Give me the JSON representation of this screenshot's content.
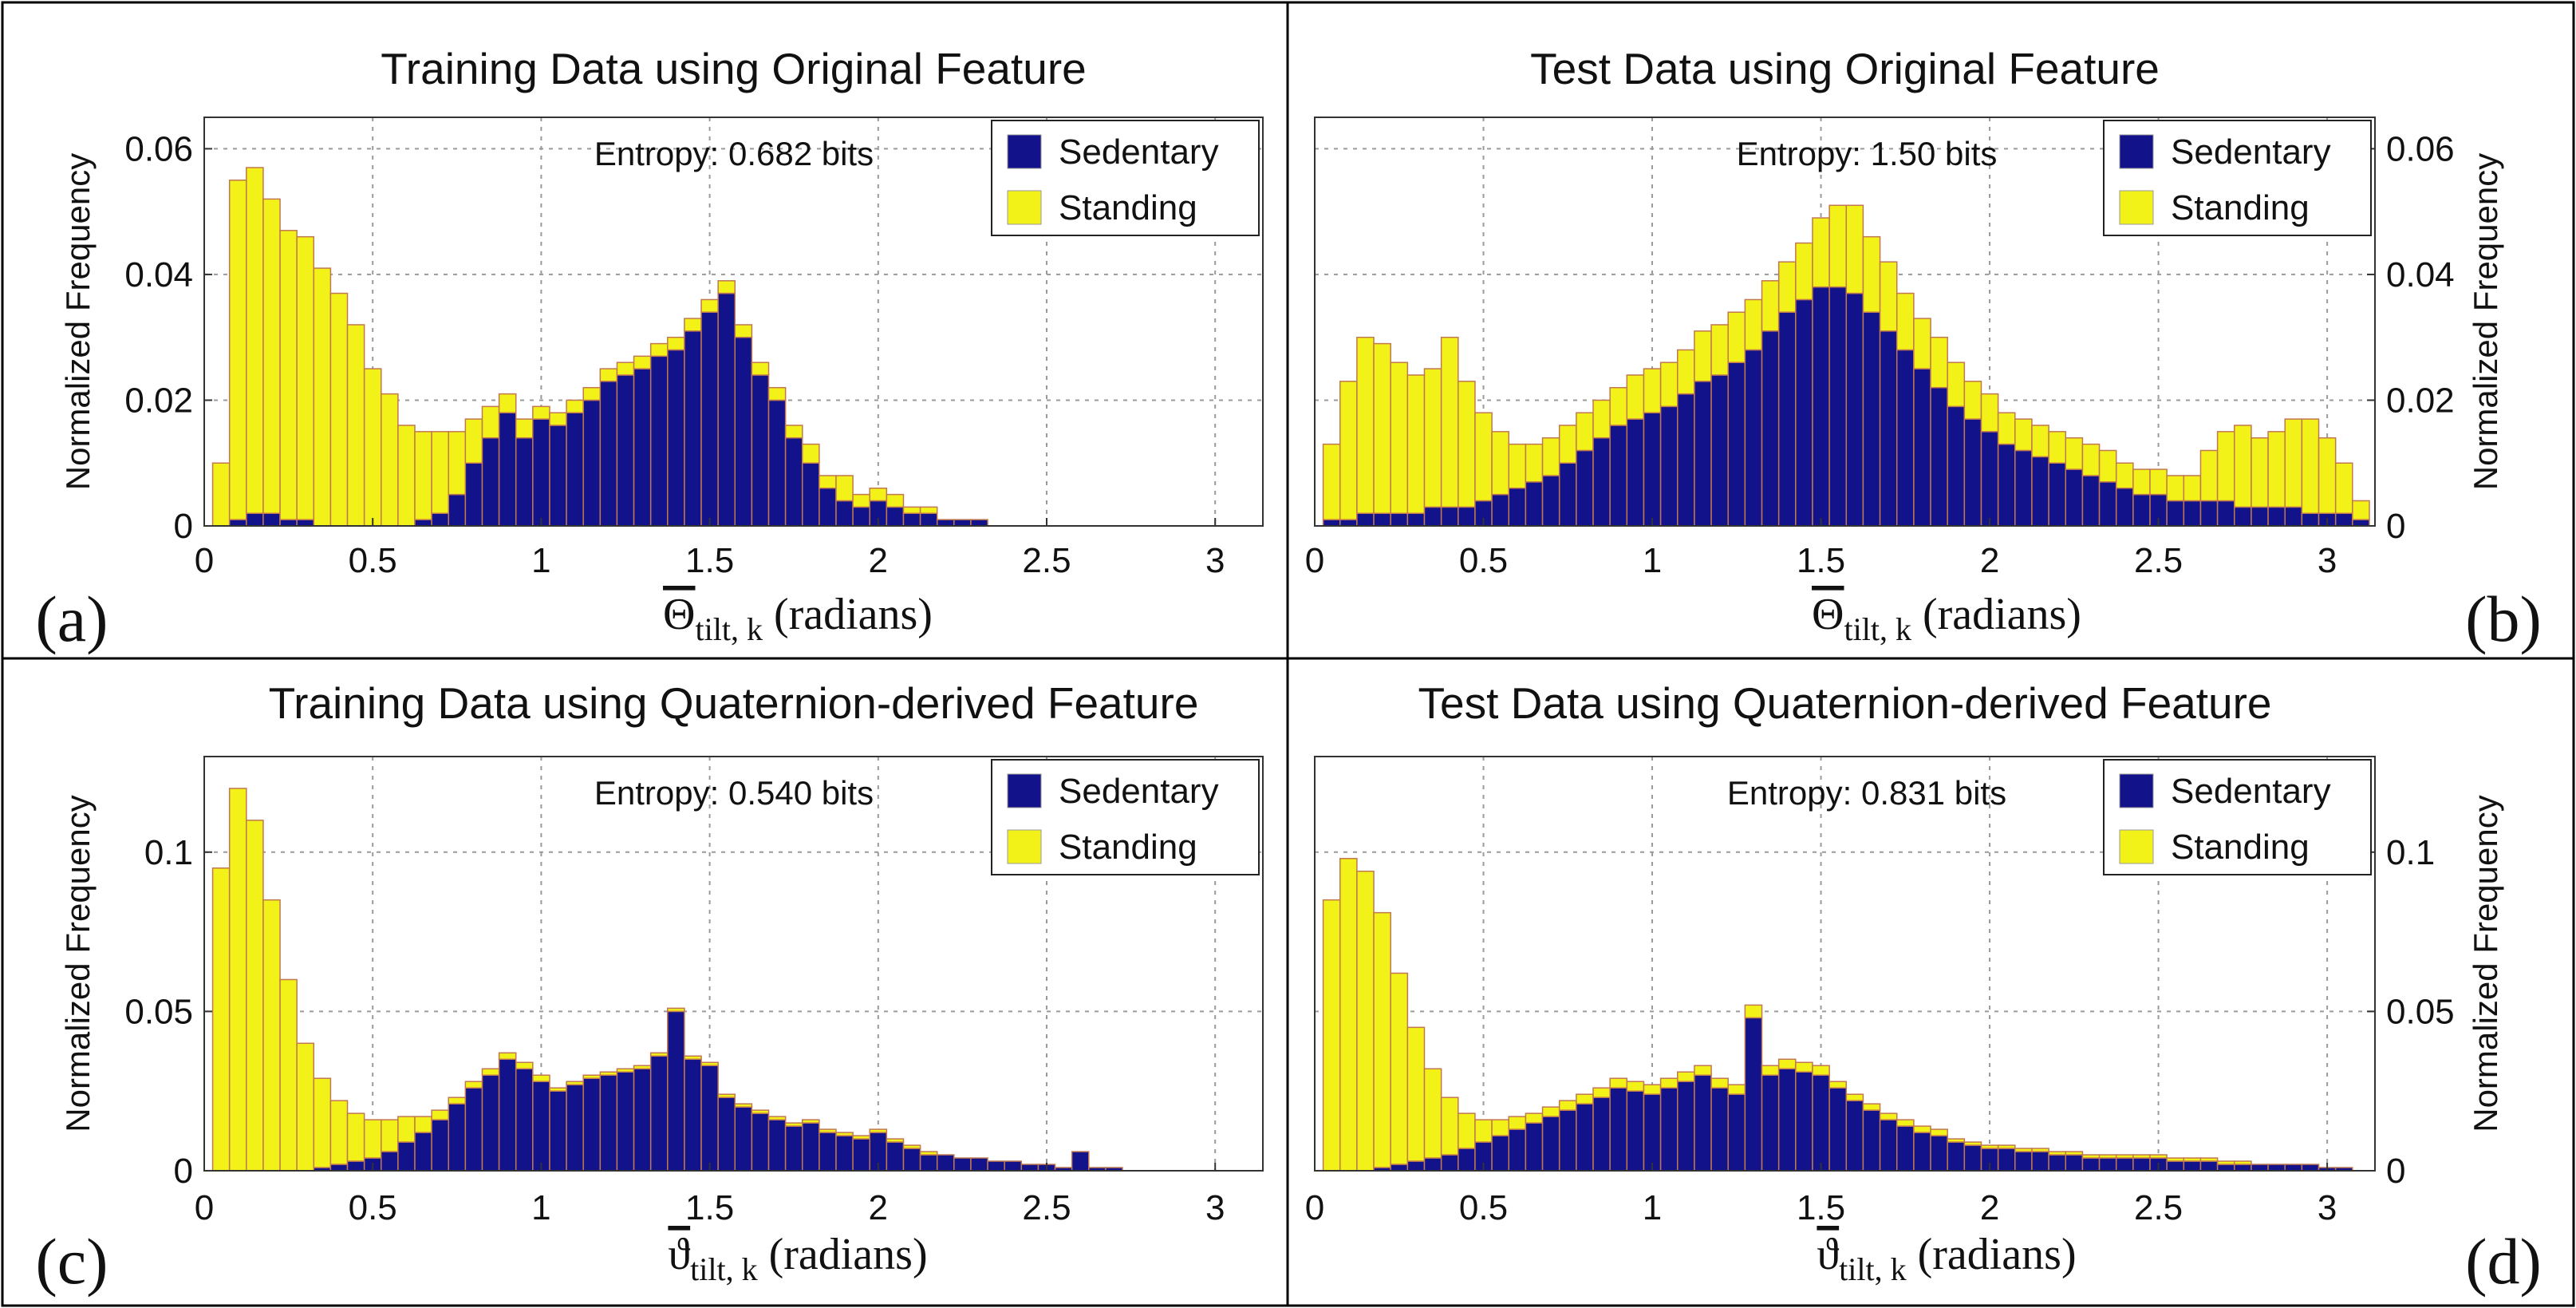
{
  "figure": {
    "legend_colors": {
      "sedentary": "#12128a",
      "standing": "#f2f219"
    }
  },
  "chart_data": [
    {
      "type": "bar",
      "panel_letter": "(a)",
      "title": "Training Data using Original Feature",
      "xlabel_symbol": "Θ",
      "xlabel_subscript": "tilt, k",
      "xlabel_unit": "(radians)",
      "ylabel": "Normalized Frequency",
      "ylabel_side": "left",
      "stacked": true,
      "xlim": [
        0,
        3.14159
      ],
      "ylim": [
        0,
        0.065
      ],
      "xticks": [
        "0",
        "0.5",
        "1",
        "1.5",
        "2",
        "2.5",
        "3"
      ],
      "yticks": [
        "0",
        "0.02",
        "0.04",
        "0.06"
      ],
      "grid": true,
      "legend_position": "top-right",
      "annotation": "Entropy:  0.682  bits",
      "x": [
        0.05,
        0.1,
        0.15,
        0.2,
        0.25,
        0.3,
        0.35,
        0.4,
        0.45,
        0.5,
        0.55,
        0.6,
        0.65,
        0.7,
        0.75,
        0.8,
        0.85,
        0.9,
        0.95,
        1.0,
        1.05,
        1.1,
        1.15,
        1.2,
        1.25,
        1.3,
        1.35,
        1.4,
        1.45,
        1.5,
        1.55,
        1.6,
        1.65,
        1.7,
        1.75,
        1.8,
        1.85,
        1.9,
        1.95,
        2.0,
        2.05,
        2.1,
        2.15,
        2.2,
        2.25,
        2.3,
        2.35,
        2.4
      ],
      "series": [
        {
          "name": "Sedentary",
          "color": "#12128a",
          "values": [
            0.0,
            0.001,
            0.002,
            0.002,
            0.001,
            0.001,
            0.0,
            0.0,
            0.0,
            0.0,
            0.0,
            0.0,
            0.001,
            0.002,
            0.005,
            0.01,
            0.014,
            0.018,
            0.014,
            0.017,
            0.016,
            0.018,
            0.02,
            0.023,
            0.024,
            0.025,
            0.027,
            0.028,
            0.031,
            0.034,
            0.037,
            0.03,
            0.024,
            0.02,
            0.014,
            0.01,
            0.006,
            0.004,
            0.003,
            0.004,
            0.003,
            0.002,
            0.002,
            0.001,
            0.001,
            0.001,
            0.0,
            0.0
          ]
        },
        {
          "name": "Standing",
          "color": "#f2f219",
          "values": [
            0.01,
            0.054,
            0.055,
            0.05,
            0.046,
            0.045,
            0.041,
            0.037,
            0.032,
            0.025,
            0.021,
            0.016,
            0.014,
            0.013,
            0.01,
            0.007,
            0.005,
            0.003,
            0.003,
            0.002,
            0.002,
            0.002,
            0.002,
            0.002,
            0.002,
            0.002,
            0.002,
            0.002,
            0.002,
            0.002,
            0.002,
            0.002,
            0.002,
            0.002,
            0.002,
            0.003,
            0.002,
            0.004,
            0.002,
            0.002,
            0.002,
            0.001,
            0.001,
            0.0,
            0.0,
            0.0,
            0.0,
            0.0
          ]
        }
      ]
    },
    {
      "type": "bar",
      "panel_letter": "(b)",
      "title": "Test Data using Original Feature",
      "xlabel_symbol": "Θ",
      "xlabel_subscript": "tilt, k",
      "xlabel_unit": "(radians)",
      "ylabel": "Normalized Frequency",
      "ylabel_side": "right",
      "stacked": true,
      "xlim": [
        0,
        3.14159
      ],
      "ylim": [
        0,
        0.065
      ],
      "xticks": [
        "0",
        "0.5",
        "1",
        "1.5",
        "2",
        "2.5",
        "3"
      ],
      "yticks": [
        "0",
        "0.02",
        "0.04",
        "0.06"
      ],
      "grid": true,
      "legend_position": "top-right",
      "annotation": "Entropy:  1.50  bits",
      "x": [
        0.05,
        0.1,
        0.15,
        0.2,
        0.25,
        0.3,
        0.35,
        0.4,
        0.45,
        0.5,
        0.55,
        0.6,
        0.65,
        0.7,
        0.75,
        0.8,
        0.85,
        0.9,
        0.95,
        1.0,
        1.05,
        1.1,
        1.15,
        1.2,
        1.25,
        1.3,
        1.35,
        1.4,
        1.45,
        1.5,
        1.55,
        1.6,
        1.65,
        1.7,
        1.75,
        1.8,
        1.85,
        1.9,
        1.95,
        2.0,
        2.05,
        2.1,
        2.15,
        2.2,
        2.25,
        2.3,
        2.35,
        2.4,
        2.45,
        2.5,
        2.55,
        2.6,
        2.65,
        2.7,
        2.75,
        2.8,
        2.85,
        2.9,
        2.95,
        3.0,
        3.05,
        3.1
      ],
      "series": [
        {
          "name": "Sedentary",
          "color": "#12128a",
          "values": [
            0.001,
            0.001,
            0.002,
            0.002,
            0.002,
            0.002,
            0.003,
            0.003,
            0.003,
            0.004,
            0.005,
            0.006,
            0.007,
            0.008,
            0.01,
            0.012,
            0.014,
            0.016,
            0.017,
            0.018,
            0.019,
            0.021,
            0.023,
            0.024,
            0.026,
            0.028,
            0.031,
            0.034,
            0.036,
            0.038,
            0.038,
            0.037,
            0.034,
            0.031,
            0.028,
            0.025,
            0.022,
            0.019,
            0.017,
            0.015,
            0.013,
            0.012,
            0.011,
            0.01,
            0.009,
            0.008,
            0.007,
            0.006,
            0.005,
            0.005,
            0.004,
            0.004,
            0.004,
            0.004,
            0.003,
            0.003,
            0.003,
            0.003,
            0.002,
            0.002,
            0.002,
            0.001
          ]
        },
        {
          "name": "Standing",
          "color": "#f2f219",
          "values": [
            0.012,
            0.022,
            0.028,
            0.027,
            0.024,
            0.022,
            0.022,
            0.027,
            0.02,
            0.014,
            0.01,
            0.007,
            0.006,
            0.006,
            0.006,
            0.006,
            0.006,
            0.006,
            0.007,
            0.007,
            0.007,
            0.007,
            0.008,
            0.008,
            0.008,
            0.008,
            0.008,
            0.008,
            0.009,
            0.011,
            0.013,
            0.014,
            0.012,
            0.011,
            0.009,
            0.008,
            0.008,
            0.007,
            0.006,
            0.006,
            0.005,
            0.005,
            0.005,
            0.005,
            0.005,
            0.005,
            0.005,
            0.004,
            0.004,
            0.004,
            0.004,
            0.004,
            0.008,
            0.011,
            0.013,
            0.011,
            0.012,
            0.014,
            0.015,
            0.012,
            0.008,
            0.003
          ]
        }
      ]
    },
    {
      "type": "bar",
      "panel_letter": "(c)",
      "title": "Training Data using Quaternion-derived Feature",
      "xlabel_symbol": "ϑ",
      "xlabel_subscript": "tilt, k",
      "xlabel_unit": "(radians)",
      "ylabel": "Normalized Frequency",
      "ylabel_side": "left",
      "stacked": true,
      "xlim": [
        0,
        3.14159
      ],
      "ylim": [
        0,
        0.13
      ],
      "xticks": [
        "0",
        "0.5",
        "1",
        "1.5",
        "2",
        "2.5",
        "3"
      ],
      "yticks": [
        "0",
        "0.05",
        "0.1"
      ],
      "grid": true,
      "legend_position": "top-right",
      "annotation": "Entropy:  0.540  bits",
      "x": [
        0.05,
        0.1,
        0.15,
        0.2,
        0.25,
        0.3,
        0.35,
        0.4,
        0.45,
        0.5,
        0.55,
        0.6,
        0.65,
        0.7,
        0.75,
        0.8,
        0.85,
        0.9,
        0.95,
        1.0,
        1.05,
        1.1,
        1.15,
        1.2,
        1.25,
        1.3,
        1.35,
        1.4,
        1.45,
        1.5,
        1.55,
        1.6,
        1.65,
        1.7,
        1.75,
        1.8,
        1.85,
        1.9,
        1.95,
        2.0,
        2.05,
        2.1,
        2.15,
        2.2,
        2.25,
        2.3,
        2.35,
        2.4,
        2.45,
        2.5,
        2.55,
        2.6,
        2.65,
        2.7
      ],
      "series": [
        {
          "name": "Sedentary",
          "color": "#12128a",
          "values": [
            0.0,
            0.0,
            0.0,
            0.0,
            0.0,
            0.0,
            0.001,
            0.002,
            0.003,
            0.004,
            0.006,
            0.009,
            0.012,
            0.016,
            0.021,
            0.026,
            0.03,
            0.035,
            0.032,
            0.028,
            0.025,
            0.027,
            0.029,
            0.03,
            0.031,
            0.032,
            0.036,
            0.05,
            0.035,
            0.033,
            0.023,
            0.02,
            0.018,
            0.016,
            0.014,
            0.015,
            0.012,
            0.011,
            0.01,
            0.012,
            0.009,
            0.007,
            0.005,
            0.005,
            0.004,
            0.004,
            0.003,
            0.003,
            0.002,
            0.002,
            0.001,
            0.006,
            0.001,
            0.001
          ]
        },
        {
          "name": "Standing",
          "color": "#f2f219",
          "values": [
            0.095,
            0.12,
            0.11,
            0.085,
            0.06,
            0.04,
            0.028,
            0.02,
            0.015,
            0.012,
            0.01,
            0.008,
            0.005,
            0.003,
            0.002,
            0.002,
            0.002,
            0.002,
            0.002,
            0.002,
            0.001,
            0.001,
            0.001,
            0.001,
            0.001,
            0.001,
            0.001,
            0.001,
            0.001,
            0.001,
            0.001,
            0.001,
            0.001,
            0.001,
            0.001,
            0.001,
            0.001,
            0.001,
            0.001,
            0.001,
            0.001,
            0.001,
            0.001,
            0.0,
            0.0,
            0.0,
            0.0,
            0.0,
            0.0,
            0.0,
            0.0,
            0.0,
            0.0,
            0.0
          ]
        }
      ]
    },
    {
      "type": "bar",
      "panel_letter": "(d)",
      "title": "Test Data using Quaternion-derived Feature",
      "xlabel_symbol": "ϑ",
      "xlabel_subscript": "tilt, k",
      "xlabel_unit": "(radians)",
      "ylabel": "Normalized Frequency",
      "ylabel_side": "right",
      "stacked": true,
      "xlim": [
        0,
        3.14159
      ],
      "ylim": [
        0,
        0.13
      ],
      "xticks": [
        "0",
        "0.5",
        "1",
        "1.5",
        "2",
        "2.5",
        "3"
      ],
      "yticks": [
        "0",
        "0.05",
        "0.1"
      ],
      "grid": true,
      "legend_position": "top-right",
      "annotation": "Entropy:  0.831  bits",
      "x": [
        0.05,
        0.1,
        0.15,
        0.2,
        0.25,
        0.3,
        0.35,
        0.4,
        0.45,
        0.5,
        0.55,
        0.6,
        0.65,
        0.7,
        0.75,
        0.8,
        0.85,
        0.9,
        0.95,
        1.0,
        1.05,
        1.1,
        1.15,
        1.2,
        1.25,
        1.3,
        1.35,
        1.4,
        1.45,
        1.5,
        1.55,
        1.6,
        1.65,
        1.7,
        1.75,
        1.8,
        1.85,
        1.9,
        1.95,
        2.0,
        2.05,
        2.1,
        2.15,
        2.2,
        2.25,
        2.3,
        2.35,
        2.4,
        2.45,
        2.5,
        2.55,
        2.6,
        2.65,
        2.7,
        2.75,
        2.8,
        2.85,
        2.9,
        2.95,
        3.0,
        3.05
      ],
      "series": [
        {
          "name": "Sedentary",
          "color": "#12128a",
          "values": [
            0.0,
            0.0,
            0.0,
            0.001,
            0.002,
            0.003,
            0.004,
            0.005,
            0.007,
            0.009,
            0.011,
            0.013,
            0.015,
            0.017,
            0.019,
            0.021,
            0.023,
            0.026,
            0.025,
            0.024,
            0.026,
            0.028,
            0.03,
            0.026,
            0.024,
            0.048,
            0.03,
            0.032,
            0.031,
            0.03,
            0.026,
            0.022,
            0.019,
            0.016,
            0.014,
            0.012,
            0.011,
            0.009,
            0.008,
            0.007,
            0.007,
            0.006,
            0.006,
            0.005,
            0.005,
            0.004,
            0.004,
            0.004,
            0.004,
            0.004,
            0.003,
            0.003,
            0.003,
            0.002,
            0.002,
            0.002,
            0.002,
            0.002,
            0.002,
            0.001,
            0.001
          ]
        },
        {
          "name": "Standing",
          "color": "#f2f219",
          "values": [
            0.085,
            0.098,
            0.094,
            0.08,
            0.06,
            0.042,
            0.028,
            0.018,
            0.011,
            0.007,
            0.005,
            0.004,
            0.003,
            0.003,
            0.003,
            0.003,
            0.003,
            0.003,
            0.003,
            0.003,
            0.003,
            0.003,
            0.003,
            0.003,
            0.003,
            0.004,
            0.003,
            0.003,
            0.003,
            0.003,
            0.002,
            0.002,
            0.002,
            0.002,
            0.002,
            0.002,
            0.002,
            0.001,
            0.001,
            0.001,
            0.001,
            0.001,
            0.001,
            0.001,
            0.001,
            0.001,
            0.001,
            0.001,
            0.001,
            0.001,
            0.001,
            0.001,
            0.001,
            0.001,
            0.001,
            0.0,
            0.0,
            0.0,
            0.0,
            0.0,
            0.0
          ]
        }
      ]
    }
  ]
}
